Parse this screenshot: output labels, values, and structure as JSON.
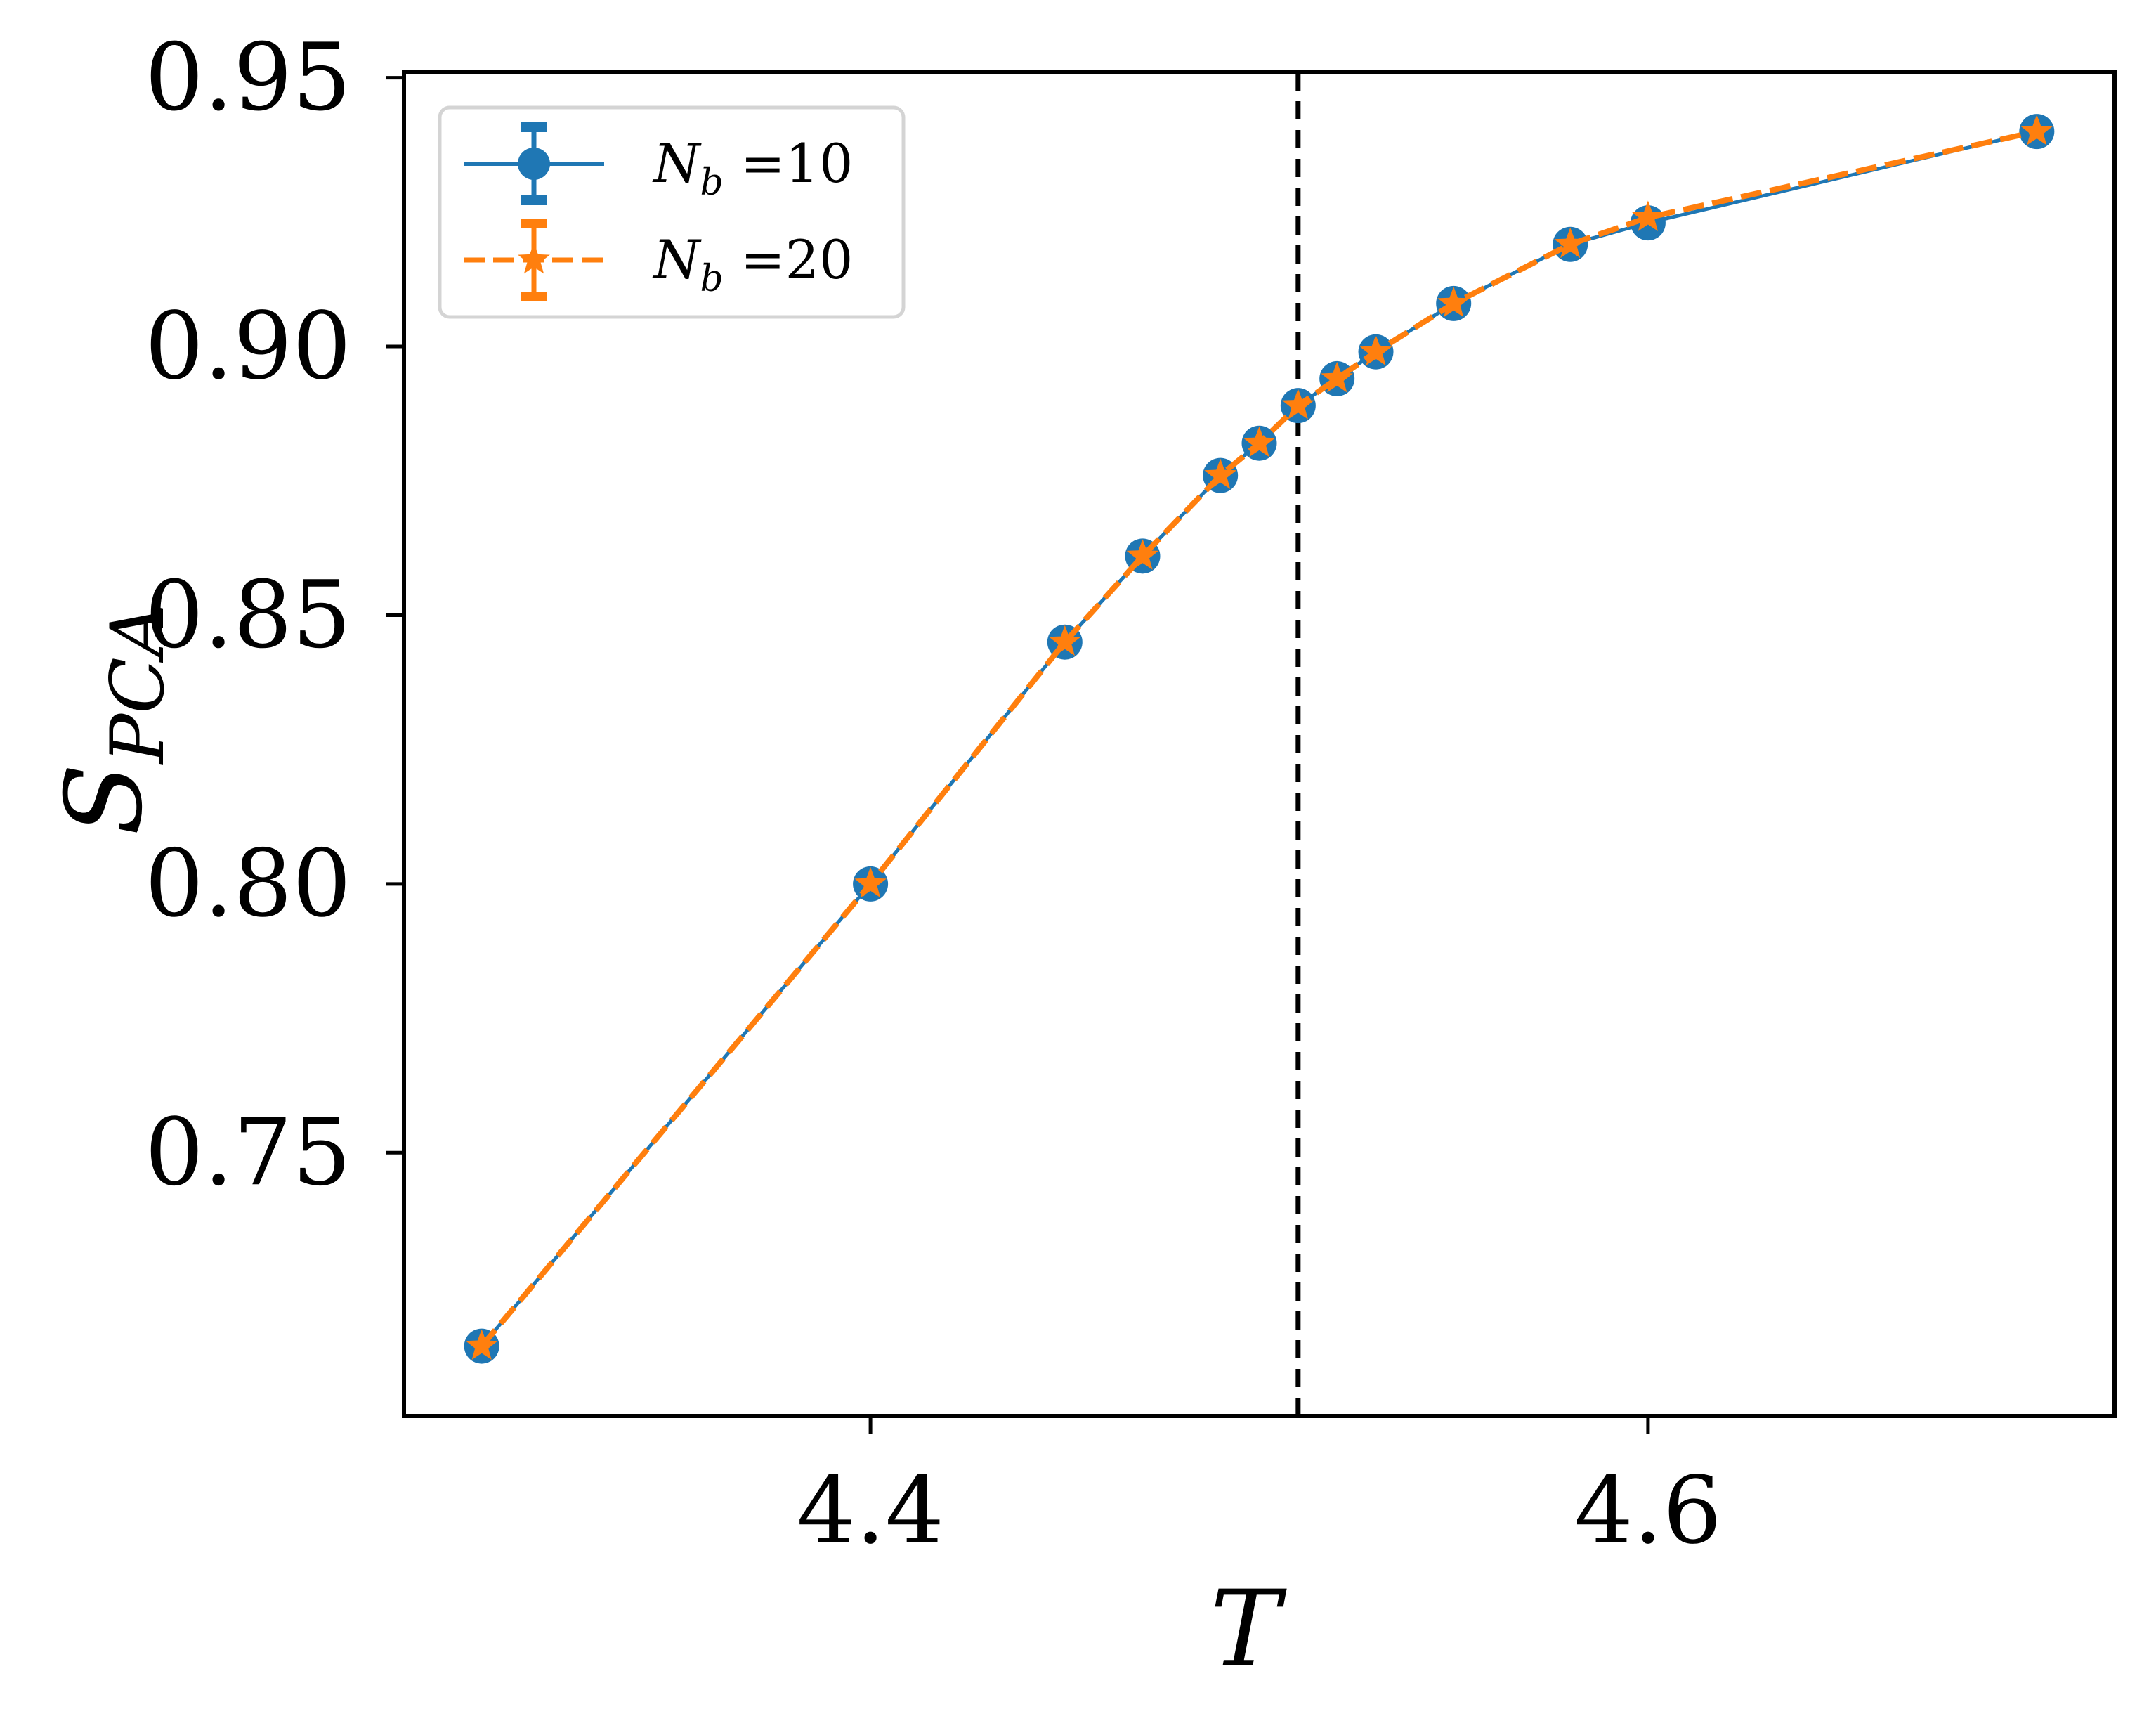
{
  "chart_data": {
    "type": "line",
    "xlabel": "T",
    "ylabel": {
      "main": "S",
      "sub": "PCA"
    },
    "xlim": [
      4.28,
      4.72
    ],
    "ylim": [
      0.701,
      0.951
    ],
    "x_ticks": [
      4.4,
      4.6
    ],
    "x_tick_labels": [
      "4.4",
      "4.6"
    ],
    "y_ticks": [
      0.75,
      0.8,
      0.85,
      0.9,
      0.95
    ],
    "y_tick_labels": [
      "0.75",
      "0.80",
      "0.85",
      "0.90",
      "0.95"
    ],
    "reference_line": {
      "x": 4.51,
      "style": "dashed",
      "color": "#000000"
    },
    "series": [
      {
        "name": "N_b =10",
        "label_main": "N",
        "label_sub": "b",
        "label_rest": " =10",
        "color": "#1f77b4",
        "marker": "circle",
        "linestyle": "solid",
        "x": [
          4.3,
          4.4,
          4.45,
          4.47,
          4.49,
          4.5,
          4.51,
          4.52,
          4.53,
          4.55,
          4.58,
          4.6,
          4.7
        ],
        "y": [
          0.714,
          0.8,
          0.845,
          0.861,
          0.876,
          0.882,
          0.889,
          0.894,
          0.899,
          0.908,
          0.919,
          0.923,
          0.94
        ]
      },
      {
        "name": "N_b =20",
        "label_main": "N",
        "label_sub": "b",
        "label_rest": " =20",
        "color": "#ff7f0e",
        "marker": "star",
        "linestyle": "dashed",
        "x": [
          4.3,
          4.4,
          4.45,
          4.47,
          4.49,
          4.5,
          4.51,
          4.52,
          4.53,
          4.55,
          4.58,
          4.6,
          4.7
        ],
        "y": [
          0.714,
          0.8,
          0.845,
          0.861,
          0.876,
          0.882,
          0.889,
          0.894,
          0.899,
          0.908,
          0.919,
          0.924,
          0.94
        ]
      }
    ],
    "legend_position": "upper-left",
    "grid": false
  }
}
